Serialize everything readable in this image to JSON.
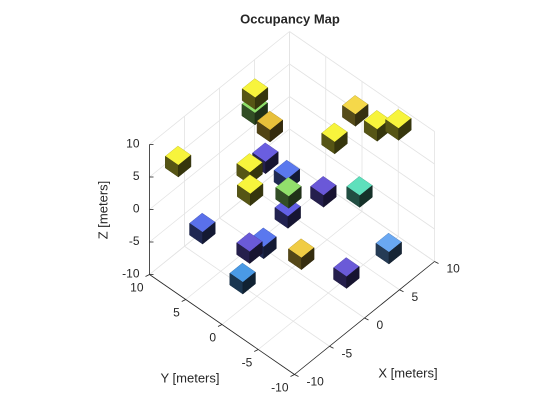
{
  "chart_data": {
    "type": "voxel3d",
    "title": "Occupancy Map",
    "xlabel": "X [meters]",
    "ylabel": "Y [meters]",
    "zlabel": "Z [meters]",
    "xlim": [
      -10,
      10
    ],
    "ylim": [
      -10,
      10
    ],
    "zlim": [
      -10,
      10
    ],
    "xticks": [
      -10,
      -5,
      0,
      5,
      10
    ],
    "yticks": [
      -10,
      -5,
      0,
      5,
      10
    ],
    "zticks": [
      -10,
      -5,
      0,
      5,
      10
    ],
    "grid": true,
    "x": [
      3,
      4,
      1.5,
      8,
      8,
      9.5,
      4,
      -8.5,
      5,
      -4.5,
      6,
      -6.5,
      -0.5,
      5,
      5.5,
      2.5,
      -4,
      -4,
      -2,
      -8,
      4.5,
      0,
      -5.5
    ],
    "y": [
      8,
      9,
      4.5,
      -1,
      -4,
      -5.5,
      -2,
      7.5,
      8.5,
      1.5,
      6.5,
      -0.5,
      0,
      0.5,
      -4,
      3,
      8.5,
      2,
      2,
      -9,
      -9,
      -7.5,
      1.5
    ],
    "z": [
      8,
      4,
      7,
      8,
      8,
      8,
      8,
      8,
      -4,
      8,
      -6,
      8,
      2,
      -3,
      0,
      -6,
      -7,
      -5,
      -6,
      6,
      -4,
      -5,
      -8
    ],
    "colors": [
      "#f7f43c",
      "#8fe06a",
      "#e8c03a",
      "#f5d84a",
      "#f7f43c",
      "#f7f43c",
      "#f7f43c",
      "#f7f43c",
      "#6a5ee0",
      "#f7f43c",
      "#5a78ee",
      "#f7f43c",
      "#92e06c",
      "#6a58d8",
      "#5ee0bc",
      "#6260e6",
      "#5a70ea",
      "#6a5ad8",
      "#5a78ee",
      "#f0cc44",
      "#6aa8f2",
      "#6a5ad8",
      "#4a9ae6"
    ]
  }
}
